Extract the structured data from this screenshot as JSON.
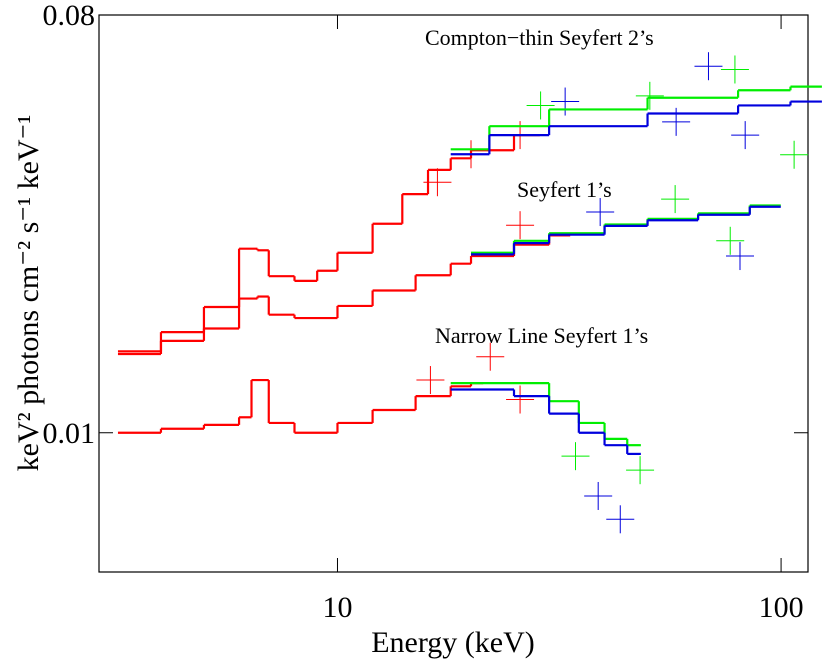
{
  "chart_data": {
    "type": "step",
    "xlabel": "Energy (keV)",
    "ylabel": "keV² photons cm⁻² s⁻¹ keV⁻¹",
    "xscale": "log",
    "yscale": "log",
    "xlim": [
      2.9,
      115
    ],
    "ylim": [
      0.005,
      0.08
    ],
    "xticks": [
      10,
      100
    ],
    "yticks": [
      0.01,
      0.08
    ],
    "annotations": [
      "Compton−thin Seyfert 2’s",
      "Seyfert 1’s",
      "Narrow Line Seyfert 1’s"
    ],
    "series": [
      {
        "color": "#ff0000",
        "x": [
          3.2,
          4,
          5,
          6,
          6.6,
          7,
          8,
          9,
          10,
          12,
          14,
          16,
          18,
          20,
          25
        ],
        "values": [
          0.0148,
          0.0165,
          0.0187,
          0.025,
          0.0248,
          0.0218,
          0.0213,
          0.0224,
          0.0245,
          0.0283,
          0.0328,
          0.037,
          0.0392,
          0.0408,
          0.044
        ]
      },
      {
        "color": "#00ee00",
        "x": [
          18,
          22,
          30,
          50,
          80,
          105
        ],
        "values": [
          0.041,
          0.046,
          0.05,
          0.053,
          0.055,
          0.056
        ]
      },
      {
        "color": "#0000dd",
        "x": [
          18,
          22,
          30,
          50,
          80,
          105
        ],
        "values": [
          0.04,
          0.044,
          0.046,
          0.049,
          0.051,
          0.052
        ]
      },
      {
        "color": "#ff0000",
        "x": [
          3.2,
          4,
          5,
          6,
          6.6,
          7,
          8,
          10,
          12,
          15,
          18,
          20,
          25,
          30
        ],
        "values": [
          0.015,
          0.0158,
          0.0168,
          0.0195,
          0.0197,
          0.018,
          0.0177,
          0.0188,
          0.0203,
          0.0219,
          0.0232,
          0.0241,
          0.0255,
          0.0267
        ]
      },
      {
        "color": "#00ee00",
        "x": [
          20,
          25,
          30,
          40,
          50,
          65,
          85
        ],
        "values": [
          0.0245,
          0.026,
          0.027,
          0.0282,
          0.029,
          0.0298,
          0.031
        ]
      },
      {
        "color": "#0000dd",
        "x": [
          20,
          25,
          30,
          40,
          50,
          65,
          85
        ],
        "values": [
          0.0243,
          0.0257,
          0.0268,
          0.028,
          0.0288,
          0.0296,
          0.0308
        ]
      },
      {
        "color": "#ff0000",
        "x": [
          3.2,
          4,
          5,
          6,
          6.4,
          7,
          8,
          10,
          12,
          15,
          18,
          20
        ],
        "values": [
          0.01,
          0.0102,
          0.0104,
          0.0108,
          0.013,
          0.0105,
          0.01,
          0.0105,
          0.0112,
          0.012,
          0.0126,
          0.0128
        ]
      },
      {
        "color": "#00ee00",
        "x": [
          18,
          25,
          30,
          35,
          40,
          45
        ],
        "values": [
          0.0128,
          0.0128,
          0.0117,
          0.0105,
          0.0097,
          0.0094
        ]
      },
      {
        "color": "#0000dd",
        "x": [
          18,
          25,
          30,
          35,
          40,
          45
        ],
        "values": [
          0.0124,
          0.012,
          0.011,
          0.01,
          0.0094,
          0.009
        ]
      }
    ],
    "markers": [
      {
        "color": "#ff0000",
        "x": [
          16.8,
          20,
          25.8,
          25.8,
          22.1,
          25.8,
          16.2
        ],
        "values": [
          0.0348,
          0.04,
          0.044,
          0.0281,
          0.0146,
          0.0118,
          0.013
        ]
      },
      {
        "color": "#00ee00",
        "x": [
          28.7,
          50.6,
          78.7,
          107,
          57.7,
          76.8,
          34.4,
          48.1
        ],
        "values": [
          0.051,
          0.0535,
          0.061,
          0.0399,
          0.032,
          0.026,
          0.0089,
          0.0083
        ]
      },
      {
        "color": "#0000dd",
        "x": [
          32.6,
          68.6,
          83,
          58,
          80.8,
          39.1,
          38.7,
          43.4
        ],
        "values": [
          0.052,
          0.062,
          0.044,
          0.047,
          0.0241,
          0.03,
          0.0073,
          0.0065
        ]
      }
    ]
  }
}
